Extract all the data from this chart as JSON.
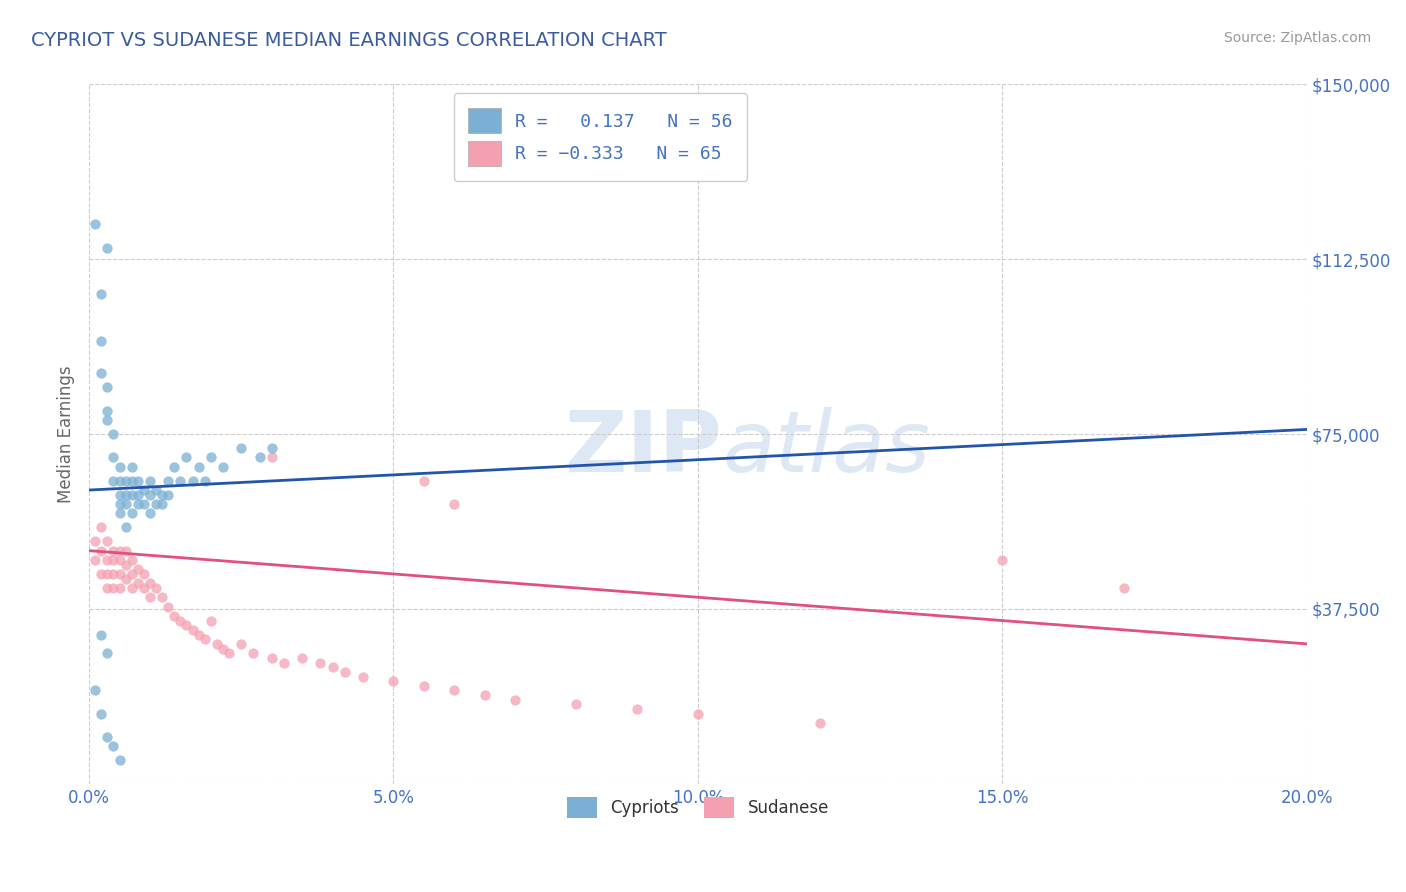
{
  "title": "CYPRIOT VS SUDANESE MEDIAN EARNINGS CORRELATION CHART",
  "source": "Source: ZipAtlas.com",
  "ylabel": "Median Earnings",
  "xlim": [
    0.0,
    0.2
  ],
  "ylim": [
    0,
    150000
  ],
  "yticks": [
    0,
    37500,
    75000,
    112500,
    150000
  ],
  "ytick_labels": [
    "",
    "$37,500",
    "$75,000",
    "$112,500",
    "$150,000"
  ],
  "xtick_labels": [
    "0.0%",
    "5.0%",
    "10.0%",
    "15.0%",
    "20.0%"
  ],
  "xticks": [
    0.0,
    0.05,
    0.1,
    0.15,
    0.2
  ],
  "cypriot_color": "#7bafd4",
  "cypriot_line_color": "#2255aa",
  "sudanese_color": "#f4a0b0",
  "sudanese_line_color": "#e05080",
  "cypriot_R": 0.137,
  "cypriot_N": 56,
  "sudanese_R": -0.333,
  "sudanese_N": 65,
  "title_color": "#3a5ba0",
  "axis_label_color": "#666666",
  "tick_label_color": "#4472c4",
  "grid_color": "#cccccc",
  "background_color": "#ffffff",
  "watermark_text": "ZIPatlas",
  "cypriot_scatter_x": [
    0.001,
    0.002,
    0.002,
    0.002,
    0.003,
    0.003,
    0.003,
    0.003,
    0.004,
    0.004,
    0.004,
    0.005,
    0.005,
    0.005,
    0.005,
    0.005,
    0.006,
    0.006,
    0.006,
    0.006,
    0.007,
    0.007,
    0.007,
    0.007,
    0.008,
    0.008,
    0.008,
    0.009,
    0.009,
    0.01,
    0.01,
    0.01,
    0.011,
    0.011,
    0.012,
    0.012,
    0.013,
    0.013,
    0.014,
    0.015,
    0.016,
    0.017,
    0.018,
    0.019,
    0.02,
    0.022,
    0.025,
    0.028,
    0.03,
    0.001,
    0.002,
    0.003,
    0.004,
    0.005,
    0.002,
    0.003
  ],
  "cypriot_scatter_y": [
    120000,
    105000,
    95000,
    88000,
    85000,
    80000,
    78000,
    115000,
    75000,
    70000,
    65000,
    68000,
    65000,
    62000,
    60000,
    58000,
    65000,
    62000,
    60000,
    55000,
    68000,
    65000,
    62000,
    58000,
    65000,
    62000,
    60000,
    63000,
    60000,
    65000,
    62000,
    58000,
    63000,
    60000,
    62000,
    60000,
    65000,
    62000,
    68000,
    65000,
    70000,
    65000,
    68000,
    65000,
    70000,
    68000,
    72000,
    70000,
    72000,
    20000,
    15000,
    10000,
    8000,
    5000,
    32000,
    28000
  ],
  "sudanese_scatter_x": [
    0.001,
    0.001,
    0.002,
    0.002,
    0.002,
    0.003,
    0.003,
    0.003,
    0.003,
    0.004,
    0.004,
    0.004,
    0.004,
    0.005,
    0.005,
    0.005,
    0.005,
    0.006,
    0.006,
    0.006,
    0.007,
    0.007,
    0.007,
    0.008,
    0.008,
    0.009,
    0.009,
    0.01,
    0.01,
    0.011,
    0.012,
    0.013,
    0.014,
    0.015,
    0.016,
    0.017,
    0.018,
    0.019,
    0.02,
    0.021,
    0.022,
    0.023,
    0.025,
    0.027,
    0.03,
    0.032,
    0.035,
    0.038,
    0.04,
    0.042,
    0.045,
    0.05,
    0.055,
    0.06,
    0.065,
    0.07,
    0.08,
    0.09,
    0.1,
    0.12,
    0.03,
    0.055,
    0.06,
    0.15,
    0.17
  ],
  "sudanese_scatter_y": [
    52000,
    48000,
    55000,
    50000,
    45000,
    52000,
    48000,
    45000,
    42000,
    50000,
    48000,
    45000,
    42000,
    50000,
    48000,
    45000,
    42000,
    50000,
    47000,
    44000,
    48000,
    45000,
    42000,
    46000,
    43000,
    45000,
    42000,
    43000,
    40000,
    42000,
    40000,
    38000,
    36000,
    35000,
    34000,
    33000,
    32000,
    31000,
    35000,
    30000,
    29000,
    28000,
    30000,
    28000,
    27000,
    26000,
    27000,
    26000,
    25000,
    24000,
    23000,
    22000,
    21000,
    20000,
    19000,
    18000,
    17000,
    16000,
    15000,
    13000,
    70000,
    65000,
    60000,
    48000,
    42000
  ],
  "cypriot_trend_x": [
    0.0,
    0.2
  ],
  "cypriot_trend_y": [
    63000,
    76000
  ],
  "sudanese_trend_x": [
    0.0,
    0.2
  ],
  "sudanese_trend_y": [
    50000,
    30000
  ]
}
